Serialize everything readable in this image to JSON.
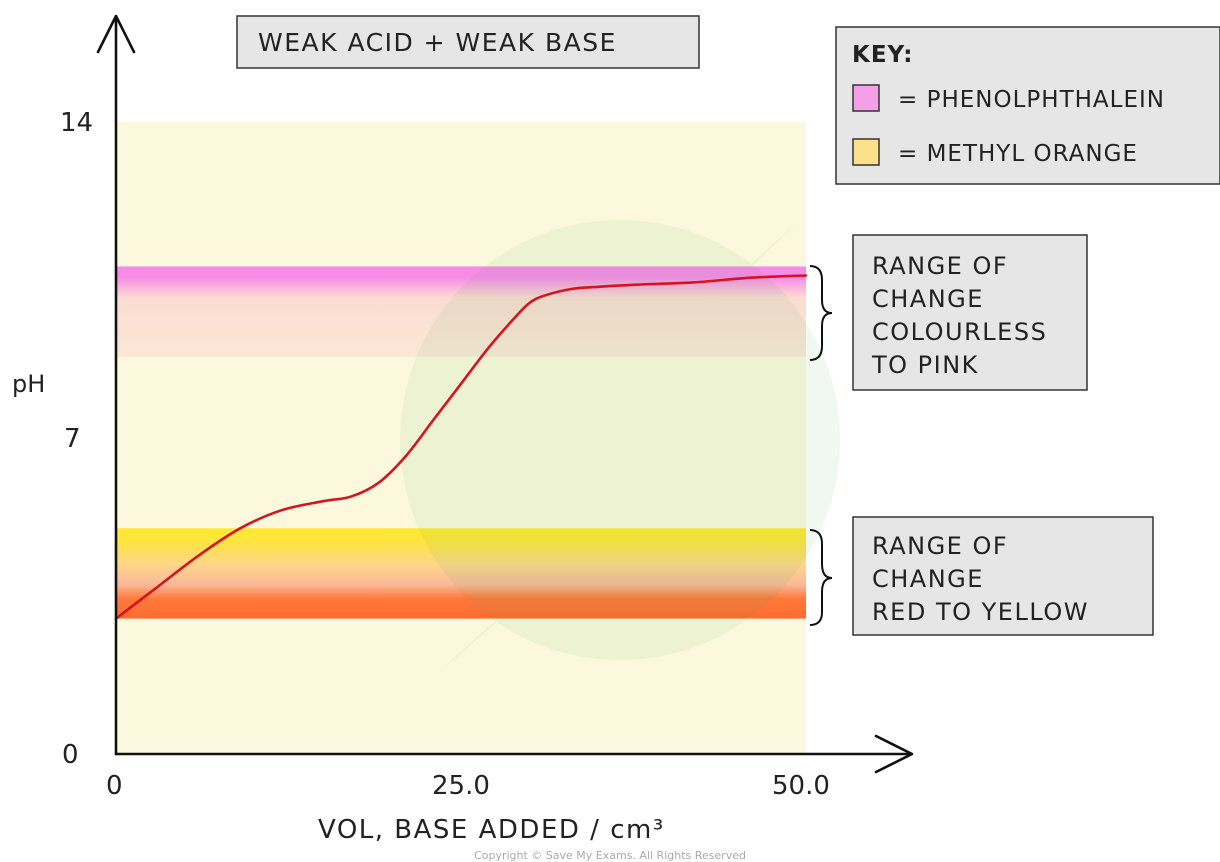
{
  "chart_data": {
    "type": "line",
    "title": "WEAK ACID + WEAK BASE",
    "xlabel": "VOL, BASE ADDED / cm³",
    "ylabel": "pH",
    "xlim": [
      0,
      50
    ],
    "ylim": [
      0,
      14
    ],
    "x_ticks": [
      "0",
      "25.0",
      "50.0"
    ],
    "y_ticks": [
      "0",
      "7",
      "14"
    ],
    "series": [
      {
        "color": "#d4141e",
        "x": [
          0,
          3,
          6,
          9,
          12,
          15,
          17,
          19,
          21,
          23,
          25,
          27,
          29,
          30,
          31,
          33,
          35,
          38,
          42,
          46,
          50
        ],
        "y": [
          3.0,
          3.7,
          4.4,
          5.0,
          5.4,
          5.6,
          5.7,
          6.0,
          6.6,
          7.4,
          8.2,
          9.0,
          9.7,
          10.0,
          10.15,
          10.3,
          10.35,
          10.4,
          10.45,
          10.55,
          10.6
        ]
      }
    ],
    "bands": [
      {
        "indicator": "PHENOLPHTHALEIN",
        "ymin": 8.8,
        "ymax": 10.8,
        "color": "#f88be8"
      },
      {
        "indicator": "METHYL ORANGE",
        "ymin": 3.0,
        "ymax": 5.0,
        "color": "#ffe44a"
      }
    ],
    "background_color": "#fcf8dd",
    "grid": false,
    "legend": {
      "title": "KEY:",
      "placement": "top-right",
      "items": [
        {
          "label": "= PHENOLPHTHALEIN",
          "color": "#f4a0e8"
        },
        {
          "label": "= METHYL  ORANGE",
          "color": "#fde08a"
        }
      ]
    },
    "annotations": [
      {
        "lines": [
          "RANGE  OF",
          "CHANGE",
          "COLOURLESS",
          "TO  PINK"
        ]
      },
      {
        "lines": [
          "RANGE  OF",
          "CHANGE",
          "RED  TO  YELLOW"
        ]
      }
    ]
  },
  "footer": {
    "copyright": "Copyright © Save My Exams. All Rights Reserved"
  }
}
